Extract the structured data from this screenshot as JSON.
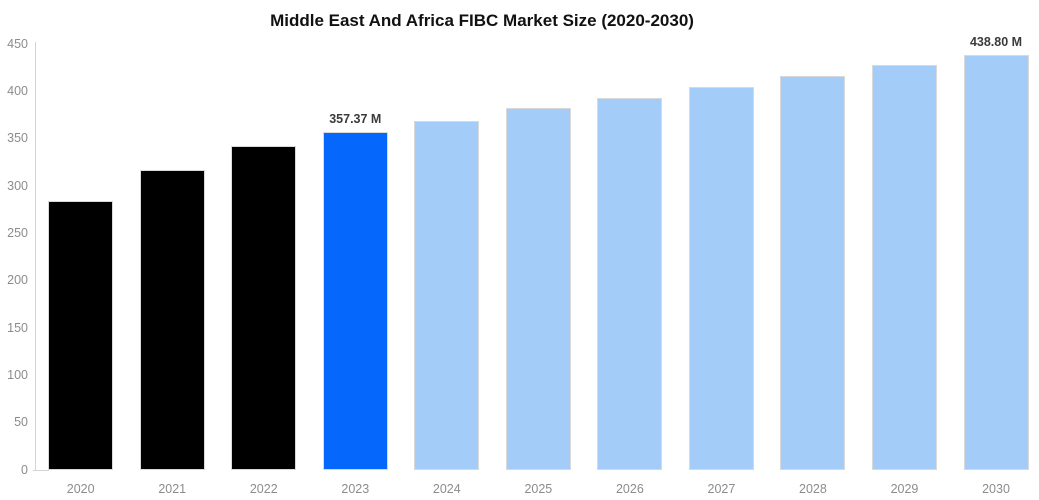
{
  "chart_data": {
    "type": "bar",
    "title": "Middle East And Africa FIBC Market Size (2020-2030)",
    "categories": [
      "2020",
      "2021",
      "2022",
      "2023",
      "2024",
      "2025",
      "2026",
      "2027",
      "2028",
      "2029",
      "2030"
    ],
    "values": [
      284,
      317,
      342,
      357.37,
      369,
      382,
      393,
      405,
      416,
      428,
      438.8
    ],
    "bar_roles": [
      "historical",
      "historical",
      "historical",
      "highlight",
      "forecast",
      "forecast",
      "forecast",
      "forecast",
      "forecast",
      "forecast",
      "forecast"
    ],
    "annotations": [
      {
        "category": "2023",
        "text": "357.37 M"
      },
      {
        "category": "2030",
        "text": "438.80 M"
      }
    ],
    "xlabel": "",
    "ylabel": "",
    "ylim": [
      0,
      450
    ],
    "yticks": [
      0,
      50,
      100,
      150,
      200,
      250,
      300,
      350,
      400,
      450
    ],
    "grid": false,
    "legend": false,
    "colors": {
      "historical": "#000000",
      "highlight": "#0667fd",
      "forecast": "#a3cdf8",
      "bar_border": "#d9d9d9",
      "axis_line": "#d4d4d4",
      "tick_label": "#8c8c8c",
      "annotation_text": "#3b3b3b",
      "title_text": "#111111",
      "background": "#ffffff"
    }
  }
}
